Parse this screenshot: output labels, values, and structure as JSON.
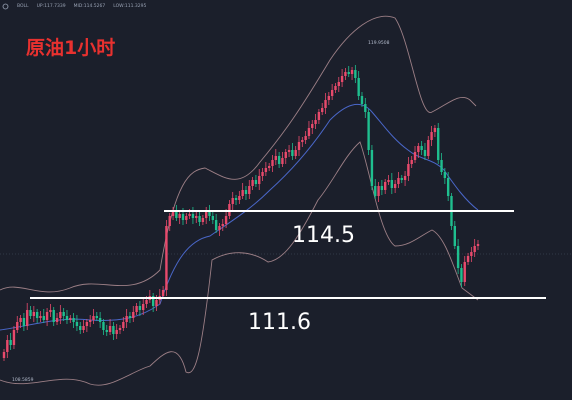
{
  "header": {
    "title": "原油1小时",
    "indicator": "BOLL",
    "up": "UP:117.7339",
    "mid": "MID:114.5267",
    "low": "LOW:111.3295"
  },
  "annotations": {
    "high_label": "119.9508",
    "low_label": "108.5859",
    "resistance_label": "114.5",
    "support_label": "111.6"
  },
  "colors": {
    "background": "#1b1f2b",
    "up_candle": "#e84a6c",
    "down_candle": "#1fbf8f",
    "level_line": "#ffffff",
    "boll_band": "#9c7f86",
    "boll_mid": "#4a67c9",
    "title": "#e8312f"
  },
  "chart_data": {
    "type": "candlestick",
    "levels": [
      114.5,
      111.6
    ],
    "high": 119.9508,
    "low": 108.5859
  }
}
